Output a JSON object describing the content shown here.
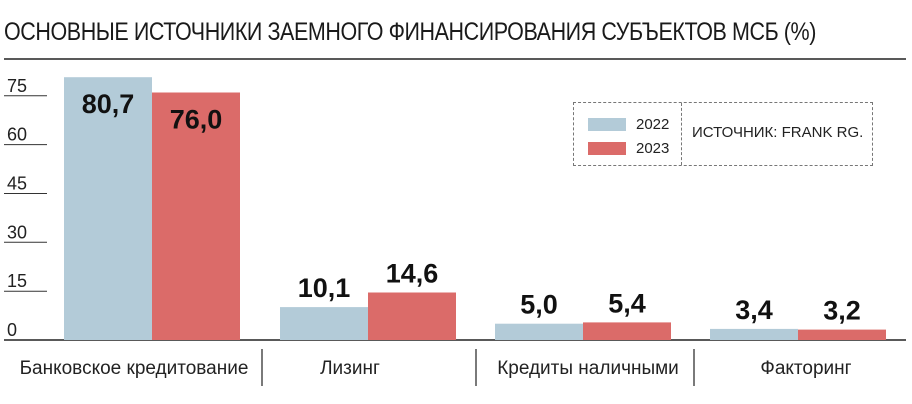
{
  "title": "ОСНОВНЫЕ ИСТОЧНИКИ ЗАЕМНОГО ФИНАНСИРОВАНИЯ СУБЪЕКТОВ МСБ (%)",
  "source": "ИСТОЧНИК: FRANK RG.",
  "colors": {
    "s2022": "#b3cbd8",
    "s2023": "#db6b69",
    "text": "#1a1a1a",
    "grid": "#333333"
  },
  "chart_data": {
    "type": "bar",
    "categories": [
      "Банковское кредитование",
      "Лизинг",
      "Кредиты наличными",
      "Факторинг"
    ],
    "series": [
      {
        "name": "2022",
        "values": [
          80.7,
          10.1,
          5.0,
          3.4
        ],
        "labels": [
          "80,7",
          "10,1",
          "5,0",
          "3,4"
        ]
      },
      {
        "name": "2023",
        "values": [
          76.0,
          14.6,
          5.4,
          3.2
        ],
        "labels": [
          "76,0",
          "14,6",
          "5,4",
          "3,2"
        ]
      }
    ],
    "yticks": [
      0,
      15,
      30,
      45,
      60,
      75
    ],
    "ylim": [
      0,
      82
    ],
    "legend": "top-right"
  }
}
